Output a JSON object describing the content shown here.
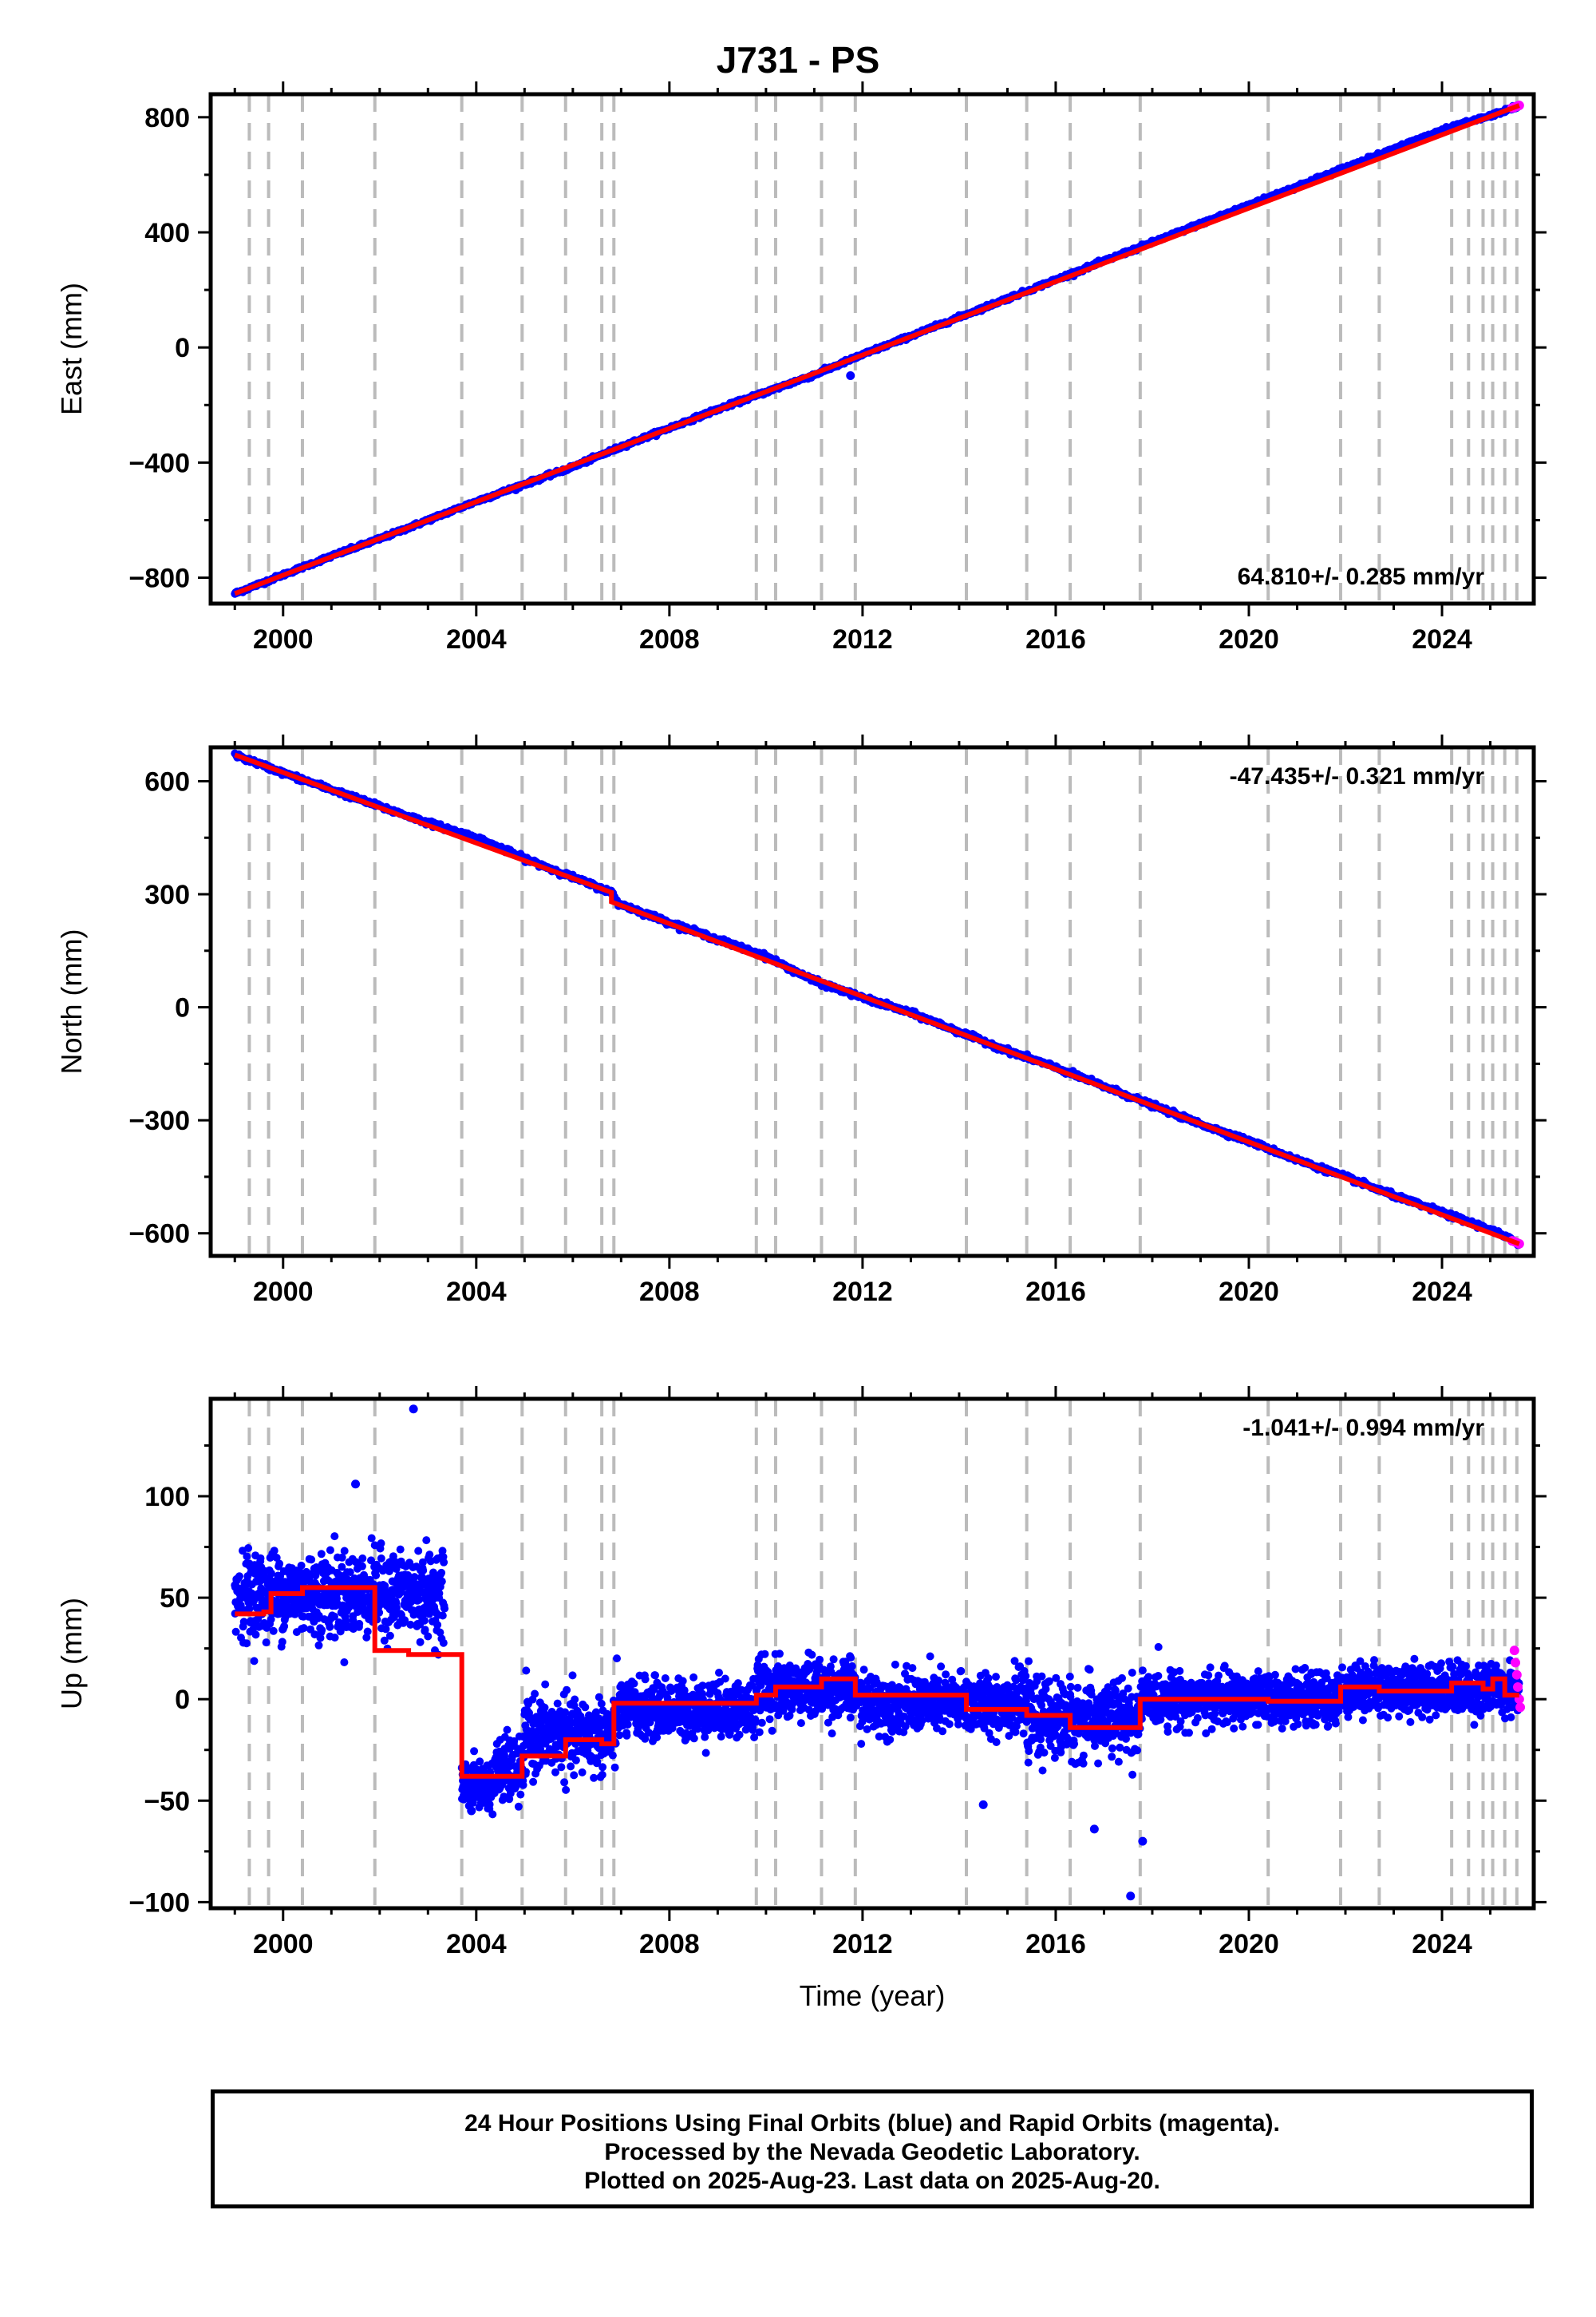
{
  "title": "J731 - PS",
  "colors": {
    "final": "#0000ff",
    "rapid": "#ff00ff",
    "model": "#ff0000",
    "event": "#bbbbbb",
    "frame": "#000000"
  },
  "chart_data": [
    {
      "type": "scatter",
      "name": "east",
      "ylabel": "East (mm)",
      "xlim": [
        1998.5,
        2025.9
      ],
      "ylim": [
        -890,
        880
      ],
      "xticks": [
        2000,
        2004,
        2008,
        2012,
        2016,
        2020,
        2024
      ],
      "yticks": [
        -800,
        -400,
        0,
        400,
        800
      ],
      "ytick_labels": [
        "−800",
        "−400",
        "0",
        "400",
        "800"
      ],
      "rate_text": "64.810+/- 0.285 mm/yr",
      "event_lines": [
        1999.3,
        1999.7,
        2000.4,
        2001.9,
        2003.7,
        2004.95,
        2005.85,
        2006.6,
        2006.85,
        2009.8,
        2010.2,
        2011.15,
        2011.85,
        2014.15,
        2015.4,
        2016.3,
        2017.75,
        2020.4,
        2021.9,
        2022.7,
        2024.2,
        2024.55,
        2024.85,
        2025.05,
        2025.3,
        2025.55
      ],
      "series": [
        {
          "legend": "Final Orbits",
          "color": "final",
          "x": [
            1999.0,
            2000.0,
            2001.0,
            2002.0,
            2003.0,
            2004.0,
            2005.0,
            2006.0,
            2007.0,
            2008.0,
            2009.0,
            2010.0,
            2011.0,
            2012.0,
            2013.0,
            2014.0,
            2015.0,
            2016.0,
            2017.0,
            2018.0,
            2019.0,
            2020.0,
            2021.0,
            2022.0,
            2023.0,
            2024.0,
            2025.0,
            2025.6
          ],
          "y": [
            -855,
            -790,
            -725,
            -665,
            -600,
            -535,
            -475,
            -415,
            -345,
            -280,
            -215,
            -155,
            -95,
            -25,
            40,
            105,
            170,
            235,
            300,
            365,
            430,
            495,
            560,
            625,
            690,
            755,
            805,
            840
          ],
          "outliers": [
            [
              2011.75,
              -98
            ]
          ]
        },
        {
          "legend": "Rapid Orbits",
          "color": "rapid",
          "x": [
            2025.45,
            2025.5,
            2025.55,
            2025.6
          ],
          "y": [
            832,
            835,
            838,
            841
          ]
        }
      ],
      "model": {
        "x": [
          1999.0,
          2025.6
        ],
        "y": [
          -855,
          841
        ]
      }
    },
    {
      "type": "scatter",
      "name": "north",
      "ylabel": "North (mm)",
      "xlim": [
        1998.5,
        2025.9
      ],
      "ylim": [
        -660,
        690
      ],
      "xticks": [
        2000,
        2004,
        2008,
        2012,
        2016,
        2020,
        2024
      ],
      "yticks": [
        -600,
        -300,
        0,
        300,
        600
      ],
      "ytick_labels": [
        "−600",
        "−300",
        "0",
        "300",
        "600"
      ],
      "rate_text": "-47.435+/- 0.321 mm/yr",
      "event_lines": [
        1999.3,
        1999.7,
        2000.4,
        2001.9,
        2003.7,
        2004.95,
        2005.85,
        2006.6,
        2006.85,
        2009.8,
        2010.2,
        2011.15,
        2011.85,
        2014.15,
        2015.4,
        2016.3,
        2017.75,
        2020.4,
        2021.9,
        2022.7,
        2024.2,
        2024.55,
        2024.85,
        2025.05,
        2025.3,
        2025.55
      ],
      "series": [
        {
          "legend": "Final Orbits",
          "color": "final",
          "x": [
            1999.0,
            2000.0,
            2001.0,
            2002.0,
            2003.0,
            2004.0,
            2005.0,
            2006.0,
            2006.8,
            2006.95,
            2008.0,
            2009.0,
            2010.0,
            2011.0,
            2012.0,
            2013.0,
            2014.0,
            2015.0,
            2016.0,
            2017.0,
            2018.0,
            2019.0,
            2020.0,
            2021.0,
            2022.0,
            2023.0,
            2024.0,
            2025.0,
            2025.6
          ],
          "y": [
            670,
            622,
            578,
            533,
            490,
            450,
            395,
            345,
            305,
            275,
            225,
            180,
            135,
            70,
            25,
            -15,
            -65,
            -115,
            -160,
            -210,
            -260,
            -310,
            -355,
            -405,
            -450,
            -500,
            -545,
            -590,
            -628
          ],
          "outliers": []
        },
        {
          "legend": "Rapid Orbits",
          "color": "rapid",
          "x": [
            2025.45,
            2025.5,
            2025.55,
            2025.6
          ],
          "y": [
            -620,
            -622,
            -625,
            -628
          ]
        }
      ],
      "model": {
        "x": [
          1999.0,
          2006.8,
          2006.8,
          2025.6
        ],
        "y": [
          670,
          305,
          280,
          -628
        ]
      }
    },
    {
      "type": "scatter",
      "name": "up",
      "ylabel": "Up (mm)",
      "xlabel": "Time (year)",
      "xlim": [
        1998.5,
        2025.9
      ],
      "ylim": [
        -103,
        148
      ],
      "xticks": [
        2000,
        2004,
        2008,
        2012,
        2016,
        2020,
        2024
      ],
      "yticks": [
        -100,
        -50,
        0,
        50,
        100
      ],
      "ytick_labels": [
        "−100",
        "−50",
        "0",
        "50",
        "100"
      ],
      "rate_text": "-1.041+/- 0.994 mm/yr",
      "event_lines": [
        1999.3,
        1999.7,
        2000.4,
        2001.9,
        2003.7,
        2004.95,
        2005.85,
        2006.6,
        2006.85,
        2009.8,
        2010.2,
        2011.15,
        2011.85,
        2014.15,
        2015.4,
        2016.3,
        2017.75,
        2020.4,
        2021.9,
        2022.7,
        2024.2,
        2024.55,
        2024.85,
        2025.05,
        2025.3,
        2025.55
      ],
      "series": [
        {
          "legend": "Final Orbits",
          "color": "final",
          "segments": [
            {
              "x0": 1999.0,
              "x1": 2003.35,
              "mean": 52,
              "scatter": 10
            },
            {
              "x0": 2003.7,
              "x1": 2004.4,
              "mean": -42,
              "scatter": 6
            },
            {
              "x0": 2004.4,
              "x1": 2005.0,
              "mean": -35,
              "scatter": 8
            },
            {
              "x0": 2005.0,
              "x1": 2006.9,
              "mean": -18,
              "scatter": 9
            },
            {
              "x0": 2006.9,
              "x1": 2009.8,
              "mean": -5,
              "scatter": 7
            },
            {
              "x0": 2009.8,
              "x1": 2011.9,
              "mean": 5,
              "scatter": 7
            },
            {
              "x0": 2011.9,
              "x1": 2015.4,
              "mean": -2,
              "scatter": 7
            },
            {
              "x0": 2015.4,
              "x1": 2017.75,
              "mean": -10,
              "scatter": 9
            },
            {
              "x0": 2017.75,
              "x1": 2021.9,
              "mean": 0,
              "scatter": 6
            },
            {
              "x0": 2021.9,
              "x1": 2025.6,
              "mean": 5,
              "scatter": 6
            }
          ],
          "outliers": [
            [
              2002.7,
              143
            ],
            [
              2001.5,
              106
            ],
            [
              2016.8,
              -64
            ],
            [
              2017.55,
              -97
            ],
            [
              2014.5,
              -52
            ],
            [
              2017.8,
              -70
            ],
            [
              2003.9,
              -55
            ]
          ]
        },
        {
          "legend": "Rapid Orbits",
          "color": "rapid",
          "x": [
            2025.5,
            2025.52,
            2025.55,
            2025.57,
            2025.6,
            2025.62
          ],
          "y": [
            24,
            18,
            12,
            6,
            0,
            -4
          ]
        }
      ],
      "model": {
        "x": [
          1999.0,
          1999.6,
          1999.6,
          1999.75,
          1999.75,
          2000.4,
          2000.4,
          2001.9,
          2001.9,
          2002.6,
          2002.6,
          2003.7,
          2003.7,
          2004.95,
          2004.95,
          2005.85,
          2005.85,
          2006.6,
          2006.6,
          2006.85,
          2006.85,
          2009.8,
          2009.8,
          2010.2,
          2010.2,
          2011.15,
          2011.15,
          2011.85,
          2011.85,
          2014.15,
          2014.15,
          2015.4,
          2015.4,
          2016.3,
          2016.3,
          2017.75,
          2017.75,
          2020.4,
          2020.4,
          2021.9,
          2021.9,
          2022.7,
          2022.7,
          2024.2,
          2024.2,
          2024.85,
          2024.85,
          2025.05,
          2025.05,
          2025.3,
          2025.3,
          2025.6
        ],
        "y": [
          42,
          42,
          43,
          43,
          52,
          52,
          55,
          55,
          24,
          24,
          22,
          22,
          -38,
          -38,
          -28,
          -28,
          -20,
          -20,
          -22,
          -22,
          -2,
          -2,
          2,
          2,
          6,
          6,
          10,
          10,
          2,
          2,
          -5,
          -5,
          -8,
          -8,
          -14,
          -14,
          0,
          0,
          -1,
          -1,
          6,
          6,
          4,
          4,
          8,
          8,
          5,
          5,
          10,
          10,
          2,
          2
        ]
      }
    }
  ],
  "footer": {
    "line1": "24 Hour Positions Using Final Orbits (blue) and Rapid Orbits (magenta).",
    "line2": "Processed by the Nevada Geodetic Laboratory.",
    "line3": "Plotted on 2025-Aug-23. Last data on 2025-Aug-20."
  }
}
